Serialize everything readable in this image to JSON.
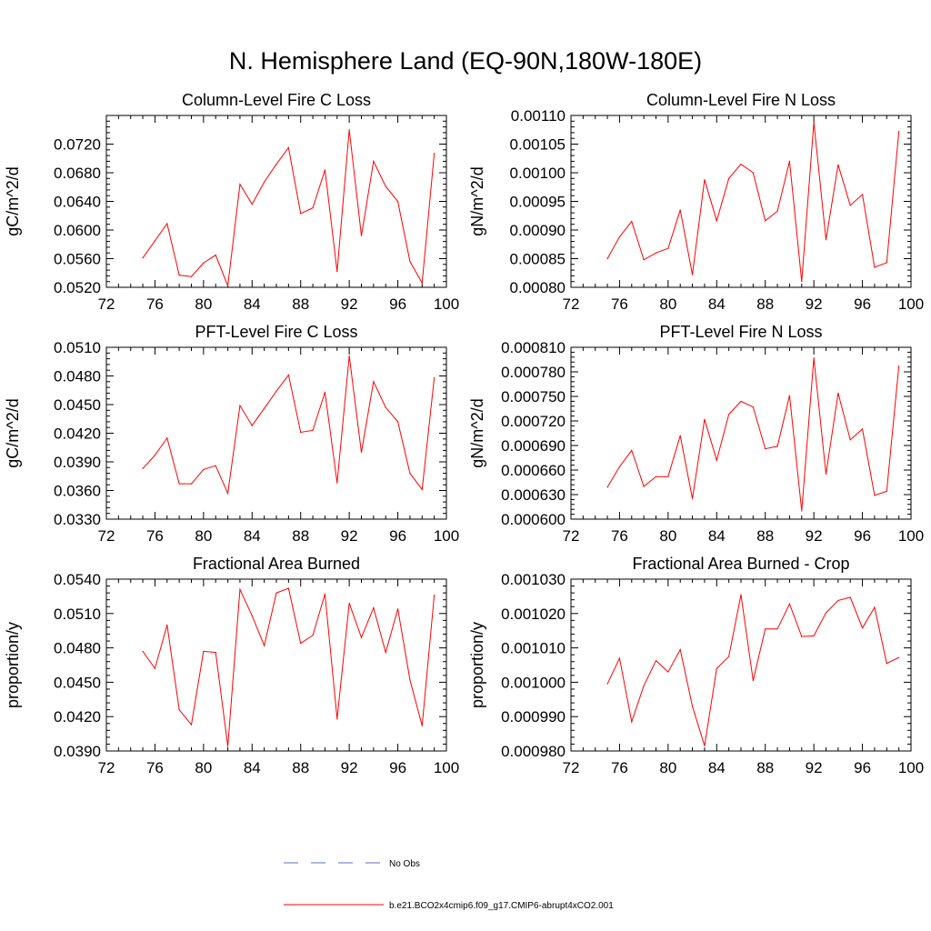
{
  "page": {
    "title": "N. Hemisphere Land (EQ-90N,180W-180E)"
  },
  "colors": {
    "model_line": "#ff0000",
    "obs_line": "#5b6ec9",
    "axis": "#000000"
  },
  "legend": {
    "placement": "bottom-center",
    "entries": [
      {
        "label": "No Obs",
        "style": "dashed",
        "color": "#5b6ec9"
      },
      {
        "label": "b.e21.BCO2x4cmip6.f09_g17.CMIP6-abrupt4xCO2.001",
        "style": "solid",
        "color": "#ff0000"
      }
    ]
  },
  "chart_data": [
    {
      "type": "line",
      "title": "Column-Level Fire C Loss",
      "ylabel": "gC/m^2/d",
      "xlim": [
        72,
        100
      ],
      "ylim": [
        0.052,
        0.076
      ],
      "xticks": [
        72,
        76,
        80,
        84,
        88,
        92,
        96,
        100
      ],
      "xtick_labels": [
        "72",
        "76",
        "80",
        "84",
        "88",
        "92",
        "96",
        "100"
      ],
      "yticks": [
        0.052,
        0.056,
        0.06,
        0.064,
        0.068,
        0.072
      ],
      "ytick_labels": [
        "0.0520",
        "0.0560",
        "0.0600",
        "0.0640",
        "0.0680",
        "0.0720"
      ],
      "x": [
        75,
        76,
        77,
        78,
        79,
        80,
        81,
        82,
        83,
        84,
        85,
        86,
        87,
        88,
        89,
        90,
        91,
        92,
        93,
        94,
        95,
        96,
        97,
        98,
        99
      ],
      "series": [
        {
          "name": "b.e21.BCO2x4cmip6.f09_g17.CMIP6-abrupt4xCO2.001",
          "values": [
            0.0561,
            0.0585,
            0.0609,
            0.0537,
            0.0535,
            0.0554,
            0.0565,
            0.0522,
            0.0664,
            0.0636,
            0.0667,
            0.0692,
            0.0715,
            0.0623,
            0.0631,
            0.0684,
            0.0542,
            0.074,
            0.0592,
            0.0696,
            0.0661,
            0.064,
            0.0556,
            0.0526,
            0.0707
          ]
        }
      ]
    },
    {
      "type": "line",
      "title": "Column-Level Fire N Loss",
      "ylabel": "gN/m^2/d",
      "xlim": [
        72,
        100
      ],
      "ylim": [
        0.0008,
        0.0011
      ],
      "xticks": [
        72,
        76,
        80,
        84,
        88,
        92,
        96,
        100
      ],
      "xtick_labels": [
        "72",
        "76",
        "80",
        "84",
        "88",
        "92",
        "96",
        "100"
      ],
      "yticks": [
        0.0008,
        0.00085,
        0.0009,
        0.00095,
        0.001,
        0.00105,
        0.0011
      ],
      "ytick_labels": [
        "0.00080",
        "0.00085",
        "0.00090",
        "0.00095",
        "0.00100",
        "0.00105",
        "0.00110"
      ],
      "x": [
        75,
        76,
        77,
        78,
        79,
        80,
        81,
        82,
        83,
        84,
        85,
        86,
        87,
        88,
        89,
        90,
        91,
        92,
        93,
        94,
        95,
        96,
        97,
        98,
        99
      ],
      "series": [
        {
          "name": "b.e21.BCO2x4cmip6.f09_g17.CMIP6-abrupt4xCO2.001",
          "values": [
            0.00085,
            0.000888,
            0.000915,
            0.000848,
            0.00086,
            0.000868,
            0.000935,
            0.000822,
            0.000988,
            0.000916,
            0.00099,
            0.001015,
            0.001,
            0.000916,
            0.000933,
            0.00102,
            0.00081,
            0.001088,
            0.000883,
            0.001014,
            0.000943,
            0.000962,
            0.000835,
            0.000843,
            0.001072
          ]
        }
      ]
    },
    {
      "type": "line",
      "title": "PFT-Level Fire C Loss",
      "ylabel": "gC/m^2/d",
      "xlim": [
        72,
        100
      ],
      "ylim": [
        0.033,
        0.051
      ],
      "xticks": [
        72,
        76,
        80,
        84,
        88,
        92,
        96,
        100
      ],
      "xtick_labels": [
        "72",
        "76",
        "80",
        "84",
        "88",
        "92",
        "96",
        "100"
      ],
      "yticks": [
        0.033,
        0.036,
        0.039,
        0.042,
        0.045,
        0.048,
        0.051
      ],
      "ytick_labels": [
        "0.0330",
        "0.0360",
        "0.0390",
        "0.0420",
        "0.0450",
        "0.0480",
        "0.0510"
      ],
      "x": [
        75,
        76,
        77,
        78,
        79,
        80,
        81,
        82,
        83,
        84,
        85,
        86,
        87,
        88,
        89,
        90,
        91,
        92,
        93,
        94,
        95,
        96,
        97,
        98,
        99
      ],
      "series": [
        {
          "name": "b.e21.BCO2x4cmip6.f09_g17.CMIP6-abrupt4xCO2.001",
          "values": [
            0.0383,
            0.0397,
            0.0415,
            0.0367,
            0.0367,
            0.0382,
            0.0386,
            0.0357,
            0.0449,
            0.0428,
            0.0446,
            0.0464,
            0.0481,
            0.0421,
            0.0423,
            0.0463,
            0.0368,
            0.0501,
            0.04,
            0.0474,
            0.0447,
            0.0432,
            0.0378,
            0.0361,
            0.0478
          ]
        }
      ]
    },
    {
      "type": "line",
      "title": "PFT-Level Fire N Loss",
      "ylabel": "gN/m^2/d",
      "xlim": [
        72,
        100
      ],
      "ylim": [
        0.0006,
        0.00081
      ],
      "xticks": [
        72,
        76,
        80,
        84,
        88,
        92,
        96,
        100
      ],
      "xtick_labels": [
        "72",
        "76",
        "80",
        "84",
        "88",
        "92",
        "96",
        "100"
      ],
      "yticks": [
        0.0006,
        0.00063,
        0.00066,
        0.00069,
        0.00072,
        0.00075,
        0.00078,
        0.00081
      ],
      "ytick_labels": [
        "0.000600",
        "0.000630",
        "0.000660",
        "0.000690",
        "0.000720",
        "0.000750",
        "0.000780",
        "0.000810"
      ],
      "x": [
        75,
        76,
        77,
        78,
        79,
        80,
        81,
        82,
        83,
        84,
        85,
        86,
        87,
        88,
        89,
        90,
        91,
        92,
        93,
        94,
        95,
        96,
        97,
        98,
        99
      ],
      "series": [
        {
          "name": "b.e21.BCO2x4cmip6.f09_g17.CMIP6-abrupt4xCO2.001",
          "values": [
            0.000639,
            0.000664,
            0.000684,
            0.00064,
            0.000652,
            0.000652,
            0.000702,
            0.000625,
            0.000722,
            0.000672,
            0.000728,
            0.000744,
            0.000737,
            0.000686,
            0.000689,
            0.000751,
            0.00061,
            0.000797,
            0.000655,
            0.000754,
            0.000697,
            0.00071,
            0.000629,
            0.000634,
            0.000787
          ]
        }
      ]
    },
    {
      "type": "line",
      "title": "Fractional Area Burned",
      "ylabel": "proportion/y",
      "xlim": [
        72,
        100
      ],
      "ylim": [
        0.039,
        0.054
      ],
      "xticks": [
        72,
        76,
        80,
        84,
        88,
        92,
        96,
        100
      ],
      "xtick_labels": [
        "72",
        "76",
        "80",
        "84",
        "88",
        "92",
        "96",
        "100"
      ],
      "yticks": [
        0.039,
        0.042,
        0.045,
        0.048,
        0.051,
        0.054
      ],
      "ytick_labels": [
        "0.0390",
        "0.0420",
        "0.0450",
        "0.0480",
        "0.0510",
        "0.0540"
      ],
      "x": [
        75,
        76,
        77,
        78,
        79,
        80,
        81,
        82,
        83,
        84,
        85,
        86,
        87,
        88,
        89,
        90,
        91,
        92,
        93,
        94,
        95,
        96,
        97,
        98,
        99
      ],
      "series": [
        {
          "name": "b.e21.BCO2x4cmip6.f09_g17.CMIP6-abrupt4xCO2.001",
          "values": [
            0.0477,
            0.0462,
            0.05,
            0.0426,
            0.0413,
            0.0477,
            0.0476,
            0.0394,
            0.0531,
            0.0508,
            0.0482,
            0.0528,
            0.0532,
            0.0484,
            0.0491,
            0.0527,
            0.0418,
            0.0519,
            0.0489,
            0.0515,
            0.0476,
            0.0514,
            0.0452,
            0.0412,
            0.0526
          ]
        }
      ]
    },
    {
      "type": "line",
      "title": "Fractional Area Burned - Crop",
      "ylabel": "proportion/y",
      "xlim": [
        72,
        100
      ],
      "ylim": [
        0.00098,
        0.00103
      ],
      "xticks": [
        72,
        76,
        80,
        84,
        88,
        92,
        96,
        100
      ],
      "xtick_labels": [
        "72",
        "76",
        "80",
        "84",
        "88",
        "92",
        "96",
        "100"
      ],
      "yticks": [
        0.00098,
        0.00099,
        0.001,
        0.00101,
        0.00102,
        0.00103
      ],
      "ytick_labels": [
        "0.000980",
        "0.000990",
        "0.001000",
        "0.001010",
        "0.001020",
        "0.001030"
      ],
      "x": [
        75,
        76,
        77,
        78,
        79,
        80,
        81,
        82,
        83,
        84,
        85,
        86,
        87,
        88,
        89,
        90,
        91,
        92,
        93,
        94,
        95,
        96,
        97,
        98,
        99
      ],
      "series": [
        {
          "name": "b.e21.BCO2x4cmip6.f09_g17.CMIP6-abrupt4xCO2.001",
          "values": [
            0.0009995,
            0.001007,
            0.0009885,
            0.000999,
            0.0010063,
            0.001003,
            0.0010095,
            0.000993,
            0.0009815,
            0.001004,
            0.0010075,
            0.0010255,
            0.0010005,
            0.0010155,
            0.0010155,
            0.0010228,
            0.0010133,
            0.0010135,
            0.0010202,
            0.0010238,
            0.0010247,
            0.0010158,
            0.0010218,
            0.0010055,
            0.0010072
          ]
        }
      ]
    }
  ]
}
